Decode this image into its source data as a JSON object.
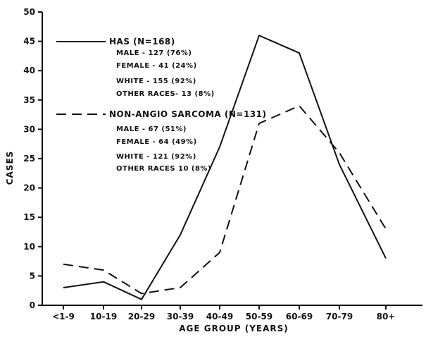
{
  "chart_data": {
    "type": "line",
    "xlabel": "AGE GROUP (YEARS)",
    "ylabel": "CASES",
    "categories": [
      "<1-9",
      "10-19",
      "20-29",
      "30-39",
      "40-49",
      "50-59",
      "60-69",
      "70-79",
      "80+"
    ],
    "ylim": [
      0,
      50
    ],
    "yticks": [
      0,
      5,
      10,
      15,
      20,
      25,
      30,
      35,
      40,
      45,
      50
    ],
    "grid": false,
    "legend_position": "top-left",
    "series": [
      {
        "name": "HAS (N=168)",
        "style": "solid",
        "values": [
          3,
          4,
          1,
          12,
          27,
          46,
          43,
          24,
          8
        ],
        "details": [
          "MALE - 127 (76%)",
          "FEMALE - 41 (24%)",
          "WHITE - 155 (92%)",
          "OTHER RACES- 13 (8%)"
        ]
      },
      {
        "name": "NON-ANGIO SARCOMA (N=131)",
        "style": "dashed",
        "values": [
          7,
          6,
          2,
          3,
          9,
          31,
          34,
          26,
          13
        ],
        "details": [
          "MALE - 67 (51%)",
          "FEMALE - 64 (49%)",
          "WHITE - 121 (92%)",
          "OTHER RACES 10 (8%)"
        ]
      }
    ]
  },
  "colors": {
    "ink": "#111111",
    "background": "#ffffff"
  }
}
